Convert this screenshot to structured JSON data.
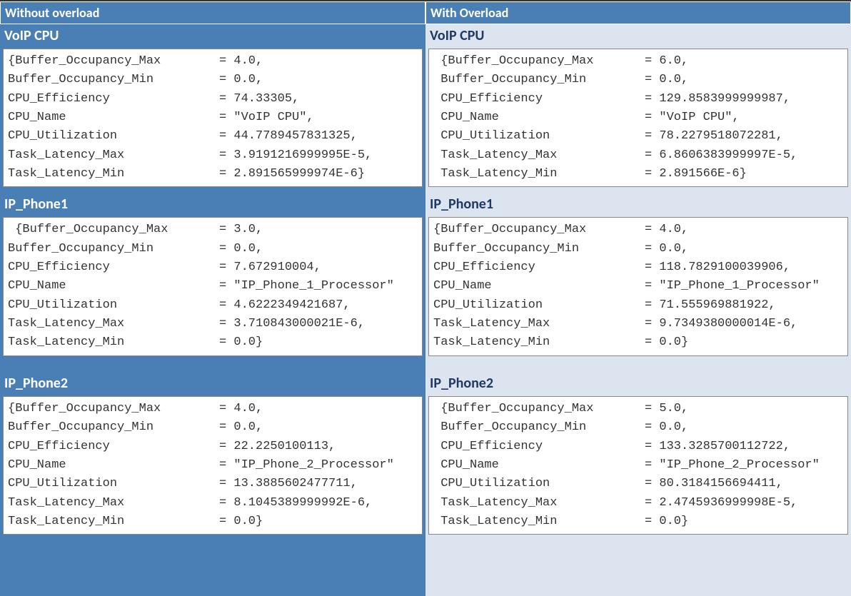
{
  "colors": {
    "left_bg": "#4a7fb5",
    "right_bg": "#dce5ef",
    "header_text_left": "#ffffff",
    "header_text_right": "#1f3864",
    "data_bg": "#ffffff",
    "data_text": "#333333",
    "border": "#888888"
  },
  "typography": {
    "header_fontsize": 18,
    "section_fontsize": 20,
    "data_fontsize": 17,
    "data_font": "Consolas"
  },
  "left": {
    "title": "Without overload",
    "sections": [
      {
        "title": "VoIP CPU",
        "rows": [
          {
            "key": "{Buffer_Occupancy_Max",
            "val": "= 4.0,"
          },
          {
            "key": "Buffer_Occupancy_Min",
            "val": "= 0.0,"
          },
          {
            "key": "CPU_Efficiency",
            "val": "= 74.33305,"
          },
          {
            "key": "CPU_Name",
            "val": "= \"VoIP CPU\","
          },
          {
            "key": "CPU_Utilization",
            "val": "= 44.7789457831325,"
          },
          {
            "key": "Task_Latency_Max",
            "val": "= 3.9191216999995E-5,"
          },
          {
            "key": "Task_Latency_Min",
            "val": "= 2.891565999974E-6}"
          }
        ]
      },
      {
        "title": "IP_Phone1",
        "rows": [
          {
            "key": " {Buffer_Occupancy_Max",
            "val": "= 3.0,"
          },
          {
            "key": "Buffer_Occupancy_Min",
            "val": "= 0.0,"
          },
          {
            "key": "CPU_Efficiency",
            "val": "= 7.672910004,"
          },
          {
            "key": "CPU_Name",
            "val": "= \"IP_Phone_1_Processor\""
          },
          {
            "key": "CPU_Utilization",
            "val": "= 4.6222349421687,"
          },
          {
            "key": "Task_Latency_Max",
            "val": "= 3.710843000021E-6,"
          },
          {
            "key": "Task_Latency_Min",
            "val": "= 0.0}"
          }
        ]
      },
      {
        "title": "IP_Phone2",
        "rows": [
          {
            "key": "{Buffer_Occupancy_Max",
            "val": "= 4.0,"
          },
          {
            "key": "Buffer_Occupancy_Min",
            "val": "= 0.0,"
          },
          {
            "key": "CPU_Efficiency",
            "val": "= 22.2250100113,"
          },
          {
            "key": "CPU_Name",
            "val": "= \"IP_Phone_2_Processor\""
          },
          {
            "key": "CPU_Utilization",
            "val": "= 13.3885602477711,"
          },
          {
            "key": "Task_Latency_Max",
            "val": "= 8.1045389999992E-6,"
          },
          {
            "key": "Task_Latency_Min",
            "val": "= 0.0}"
          }
        ]
      }
    ]
  },
  "right": {
    "title": "With Overload",
    "sections": [
      {
        "title": "VoIP CPU",
        "rows": [
          {
            "key": " {Buffer_Occupancy_Max",
            "val": "= 6.0,"
          },
          {
            "key": " Buffer_Occupancy_Min",
            "val": "= 0.0,"
          },
          {
            "key": " CPU_Efficiency",
            "val": "= 129.8583999999987,"
          },
          {
            "key": " CPU_Name",
            "val": "= \"VoIP CPU\","
          },
          {
            "key": " CPU_Utilization",
            "val": "= 78.2279518072281,"
          },
          {
            "key": " Task_Latency_Max",
            "val": "= 6.8606383999997E-5,"
          },
          {
            "key": " Task_Latency_Min",
            "val": "= 2.891566E-6}"
          }
        ]
      },
      {
        "title": "IP_Phone1",
        "rows": [
          {
            "key": "{Buffer_Occupancy_Max",
            "val": "= 4.0,"
          },
          {
            "key": "Buffer_Occupancy_Min",
            "val": "= 0.0,"
          },
          {
            "key": "CPU_Efficiency",
            "val": "= 118.7829100039906,"
          },
          {
            "key": "CPU_Name",
            "val": "= \"IP_Phone_1_Processor\""
          },
          {
            "key": "CPU_Utilization",
            "val": "= 71.555969881922,"
          },
          {
            "key": "Task_Latency_Max",
            "val": "= 9.7349380000014E-6,"
          },
          {
            "key": "Task_Latency_Min",
            "val": "= 0.0}"
          }
        ]
      },
      {
        "title": "IP_Phone2",
        "rows": [
          {
            "key": " {Buffer_Occupancy_Max",
            "val": "= 5.0,"
          },
          {
            "key": " Buffer_Occupancy_Min",
            "val": "= 0.0,"
          },
          {
            "key": " CPU_Efficiency",
            "val": "= 133.3285700112722,"
          },
          {
            "key": " CPU_Name",
            "val": "= \"IP_Phone_2_Processor\""
          },
          {
            "key": " CPU_Utilization",
            "val": "= 80.3184156694411,"
          },
          {
            "key": " Task_Latency_Max",
            "val": "= 2.4745936999998E-5,"
          },
          {
            "key": " Task_Latency_Min",
            "val": "= 0.0}"
          }
        ]
      }
    ]
  }
}
